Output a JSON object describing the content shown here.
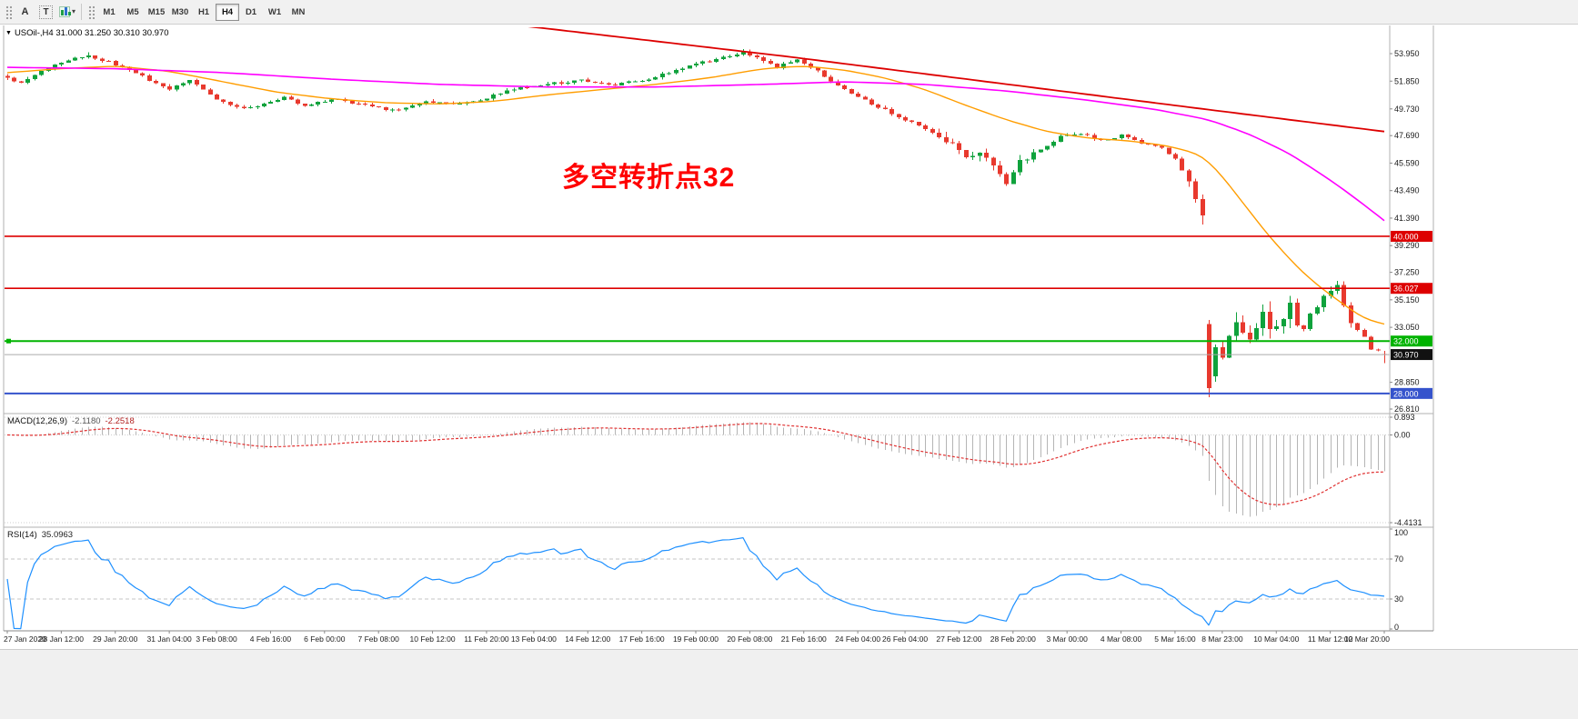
{
  "window": {
    "bg": "#ffffff",
    "footer_bg": "#f0f0f0"
  },
  "toolbar": {
    "tool_buttons": [
      "A",
      "T"
    ],
    "dropdown_caret": "▾",
    "timeframes": [
      "M1",
      "M5",
      "M15",
      "M30",
      "H1",
      "H4",
      "D1",
      "W1",
      "MN"
    ],
    "active_timeframe": "H4"
  },
  "chart_header": {
    "collapse_arrow": "▼",
    "title": "USOil-,H4 31.000 31.250 30.310 30.970"
  },
  "annotation": {
    "text": "多空转折点32",
    "color": "#ff0000"
  },
  "colors": {
    "up": "#0fa23c",
    "down": "#e8392e",
    "ma_fast": "#ff9d00",
    "ma_mid": "#ff00ff",
    "ma_slow": "#dd0000",
    "macd_hist": "#b5b5b5",
    "macd_signal": "#e03131",
    "rsi_line": "#1e90ff",
    "grid": "#cfcfcf",
    "axis_text": "#1a1a1a"
  },
  "chart_data": {
    "type": "candlestick",
    "symbol": "USOil-",
    "timeframe": "H4",
    "title": "USOil-,H4 31.000 31.250 30.310 30.970",
    "last_ohlc": {
      "open": 31.0,
      "high": 31.25,
      "low": 30.31,
      "close": 30.97
    },
    "main": {
      "bars": 205,
      "price_path": [
        [
          0,
          52.1
        ],
        [
          2,
          51.75
        ],
        [
          5,
          52.6
        ],
        [
          9,
          53.45
        ],
        [
          12,
          53.8
        ],
        [
          15,
          53.3
        ],
        [
          19,
          52.45
        ],
        [
          24,
          51.2
        ],
        [
          27,
          51.9
        ],
        [
          31,
          50.4
        ],
        [
          35,
          49.75
        ],
        [
          38,
          50.1
        ],
        [
          41,
          50.7
        ],
        [
          44,
          49.95
        ],
        [
          48,
          50.5
        ],
        [
          52,
          50.1
        ],
        [
          57,
          49.6
        ],
        [
          62,
          50.3
        ],
        [
          67,
          50.05
        ],
        [
          71,
          50.6
        ],
        [
          75,
          51.3
        ],
        [
          80,
          51.6
        ],
        [
          85,
          51.9
        ],
        [
          90,
          51.6
        ],
        [
          95,
          52.0
        ],
        [
          100,
          52.9
        ],
        [
          105,
          53.5
        ],
        [
          109,
          54.1
        ],
        [
          112,
          53.4
        ],
        [
          114,
          52.9
        ],
        [
          117,
          53.5
        ],
        [
          120,
          52.6
        ],
        [
          123,
          51.5
        ],
        [
          127,
          50.4
        ],
        [
          131,
          49.4
        ],
        [
          134,
          48.7
        ],
        [
          137,
          47.9
        ],
        [
          140,
          46.9
        ],
        [
          142,
          45.9
        ],
        [
          144,
          46.4
        ],
        [
          146,
          45.2
        ],
        [
          148,
          44.0
        ],
        [
          150,
          45.6
        ],
        [
          153,
          46.6
        ],
        [
          156,
          47.6
        ],
        [
          159,
          47.9
        ],
        [
          162,
          47.3
        ],
        [
          165,
          47.7
        ],
        [
          168,
          47.1
        ],
        [
          171,
          46.7
        ],
        [
          173,
          45.9
        ],
        [
          175,
          44.3
        ],
        [
          176,
          43.0
        ],
        [
          177,
          41.6
        ],
        [
          178,
          28.4
        ],
        [
          179,
          31.3
        ],
        [
          180,
          30.6
        ],
        [
          181,
          32.3
        ],
        [
          182,
          33.4
        ],
        [
          183,
          32.4
        ],
        [
          184,
          32.1
        ],
        [
          185,
          33.2
        ],
        [
          186,
          34.0
        ],
        [
          187,
          33.2
        ],
        [
          188,
          33.4
        ],
        [
          189,
          34.1
        ],
        [
          190,
          34.6
        ],
        [
          191,
          33.6
        ],
        [
          192,
          33.1
        ],
        [
          193,
          33.9
        ],
        [
          194,
          34.6
        ],
        [
          195,
          35.3
        ],
        [
          196,
          35.8
        ],
        [
          197,
          36.3
        ],
        [
          198,
          34.7
        ],
        [
          199,
          33.4
        ],
        [
          200,
          32.9
        ],
        [
          201,
          32.3
        ],
        [
          202,
          31.4
        ],
        [
          203,
          31.3
        ],
        [
          204,
          30.97
        ]
      ],
      "vol_base": 0.16,
      "vol_zones": [
        [
          138,
          152,
          0.4
        ],
        [
          175,
          177,
          0.5
        ],
        [
          178,
          191,
          0.8
        ],
        [
          192,
          199,
          0.4
        ],
        [
          200,
          204,
          0.22
        ]
      ],
      "overrides": {
        "12": {
          "h": 54.05
        },
        "109": {
          "h": 54.3
        },
        "148": {
          "l": 43.85
        },
        "177": {
          "l": 40.9
        },
        "178": {
          "o": 33.3,
          "h": 33.6,
          "l": 27.7,
          "c": 28.4
        },
        "197": {
          "h": 36.6
        },
        "204": {
          "o": 31.0,
          "h": 31.25,
          "l": 30.31,
          "c": 30.97
        }
      },
      "moving_averages": [
        {
          "name": "ma-fast-orange",
          "color_key": "ma_fast",
          "width": 1.4,
          "anchors": [
            [
              0,
              52.5
            ],
            [
              8,
              52.8
            ],
            [
              16,
              53.0
            ],
            [
              24,
              52.6
            ],
            [
              32,
              51.8
            ],
            [
              40,
              51.0
            ],
            [
              48,
              50.5
            ],
            [
              56,
              50.2
            ],
            [
              64,
              50.1
            ],
            [
              72,
              50.3
            ],
            [
              80,
              50.8
            ],
            [
              88,
              51.2
            ],
            [
              96,
              51.6
            ],
            [
              104,
              52.1
            ],
            [
              112,
              52.8
            ],
            [
              118,
              53.0
            ],
            [
              124,
              52.7
            ],
            [
              130,
              52.1
            ],
            [
              136,
              51.2
            ],
            [
              142,
              50.0
            ],
            [
              148,
              48.9
            ],
            [
              154,
              48.0
            ],
            [
              160,
              47.5
            ],
            [
              166,
              47.3
            ],
            [
              172,
              46.9
            ],
            [
              177,
              46.2
            ],
            [
              180,
              44.6
            ],
            [
              183,
              42.6
            ],
            [
              186,
              40.6
            ],
            [
              189,
              38.8
            ],
            [
              192,
              37.2
            ],
            [
              195,
              35.9
            ],
            [
              198,
              34.8
            ],
            [
              201,
              33.7
            ],
            [
              204,
              33.3
            ]
          ]
        },
        {
          "name": "ma-mid-magenta",
          "color_key": "ma_mid",
          "width": 1.6,
          "anchors": [
            [
              0,
              52.9
            ],
            [
              16,
              52.8
            ],
            [
              32,
              52.5
            ],
            [
              48,
              52.0
            ],
            [
              64,
              51.6
            ],
            [
              80,
              51.4
            ],
            [
              96,
              51.4
            ],
            [
              112,
              51.6
            ],
            [
              124,
              51.8
            ],
            [
              136,
              51.6
            ],
            [
              148,
              51.1
            ],
            [
              160,
              50.4
            ],
            [
              170,
              49.7
            ],
            [
              178,
              48.9
            ],
            [
              184,
              47.8
            ],
            [
              190,
              46.3
            ],
            [
              196,
              44.3
            ],
            [
              200,
              42.8
            ],
            [
              204,
              41.2
            ]
          ]
        },
        {
          "name": "ma-slow-red",
          "color_key": "ma_slow",
          "width": 1.8,
          "anchors": [
            [
              76,
              56.1
            ],
            [
              96,
              54.9
            ],
            [
              116,
              53.7
            ],
            [
              136,
              52.4
            ],
            [
              156,
              51.1
            ],
            [
              176,
              49.8
            ],
            [
              190,
              48.9
            ],
            [
              204,
              48.0
            ]
          ]
        }
      ],
      "hlines": [
        {
          "price": 40.0,
          "label": "40.000",
          "color": "#dd0000",
          "width": 1.6,
          "selected": false
        },
        {
          "price": 36.027,
          "label": "36.027",
          "color": "#dd0000",
          "width": 1.6,
          "selected": false
        },
        {
          "price": 32.0,
          "label": "32.000",
          "color": "#00b300",
          "width": 2,
          "selected": true
        },
        {
          "price": 28.0,
          "label": "28.000",
          "color": "#3553cc",
          "width": 2,
          "selected": false
        }
      ],
      "bid": {
        "price": 30.97,
        "label": "30.970",
        "line_color": "#aaaaaa",
        "tag_bg": "#111111"
      },
      "price_axis_labels": [
        53.95,
        51.85,
        49.73,
        47.69,
        45.59,
        43.49,
        41.39,
        39.29,
        37.25,
        35.15,
        33.05,
        28.85,
        26.81
      ]
    },
    "macd": {
      "label": "MACD(12,26,9)",
      "value_main": "-2.1180",
      "value_signal": "-2.2518",
      "fast": 12,
      "slow": 26,
      "signal": 9,
      "axis": [
        {
          "v": 0.893,
          "t": "0.893"
        },
        {
          "v": 0,
          "t": "0.00"
        },
        {
          "v": -4.4131,
          "t": "-4.4131"
        }
      ]
    },
    "rsi": {
      "label": "RSI(14)",
      "value_text": "35.0963",
      "period": 14,
      "levels": [
        70,
        30
      ],
      "axis": [
        {
          "v": 100,
          "t": "100"
        },
        {
          "v": 70,
          "t": "70"
        },
        {
          "v": 30,
          "t": "30"
        },
        {
          "v": 0,
          "t": "0"
        }
      ]
    },
    "time_axis": [
      "27 Jan 2020",
      "28 Jan 12:00",
      "29 Jan 20:00",
      "31 Jan 04:00",
      "3 Feb 08:00",
      "4 Feb 16:00",
      "6 Feb 00:00",
      "7 Feb 08:00",
      "10 Feb 12:00",
      "11 Feb 20:00",
      "13 Feb 04:00",
      "14 Feb 12:00",
      "17 Feb 16:00",
      "19 Feb 00:00",
      "20 Feb 08:00",
      "21 Feb 16:00",
      "24 Feb 04:00",
      "26 Feb 04:00",
      "27 Feb 12:00",
      "28 Feb 20:00",
      "3 Mar 00:00",
      "4 Mar 08:00",
      "5 Mar 16:00",
      "8 Mar 23:00",
      "10 Mar 04:00",
      "11 Mar 12:00",
      "12 Mar 20:00"
    ]
  }
}
